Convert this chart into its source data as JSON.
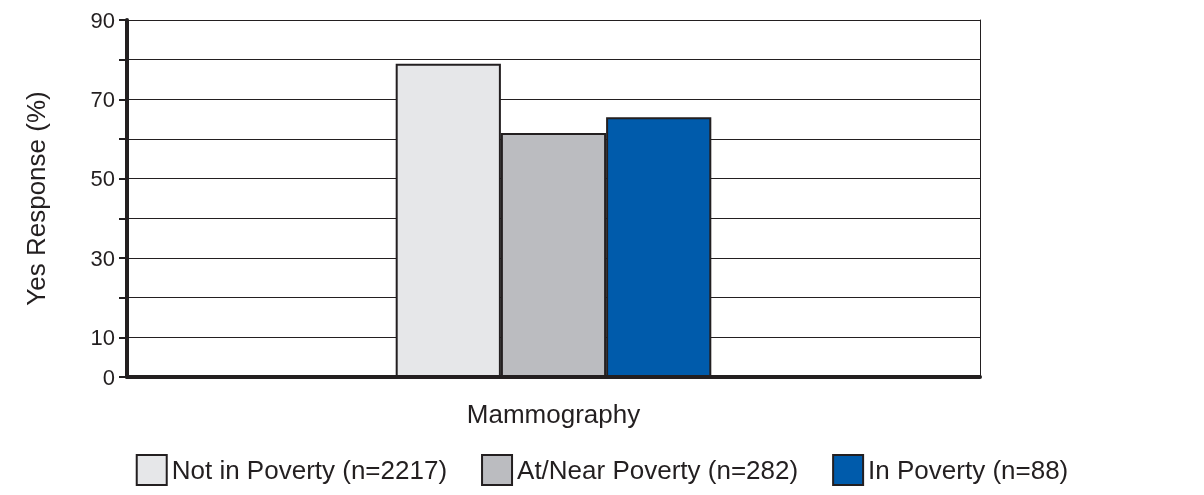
{
  "chart_data": {
    "type": "bar",
    "ylabel": "Yes Response (%)",
    "categories": [
      "Mammography"
    ],
    "series": [
      {
        "name": "Not in Poverty (n=2217)",
        "color": "#e6e7e9",
        "values": [
          79
        ]
      },
      {
        "name": "At/Near Poverty (n=282)",
        "color": "#bbbcc0",
        "values": [
          61.5
        ]
      },
      {
        "name": "In Poverty (n=88)",
        "color": "#005bab",
        "values": [
          65.5
        ]
      }
    ],
    "ylim": [
      0,
      90
    ],
    "yticks": [
      0,
      10,
      {
        "value": 20,
        "label": null
      },
      30,
      {
        "value": 40,
        "label": null
      },
      50,
      {
        "value": 60,
        "label": null
      },
      70,
      {
        "value": 80,
        "label": null
      },
      90
    ],
    "grid": "y",
    "legend": "bottom"
  }
}
